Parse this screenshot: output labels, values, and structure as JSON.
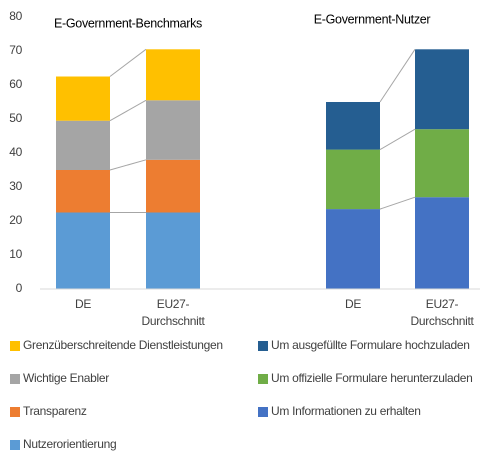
{
  "chart_data": [
    {
      "type": "bar",
      "stacked": true,
      "title": "E-Government-Benchmarks",
      "categories": [
        "DE",
        "EU27-\nDurchschnitt"
      ],
      "ylim": [
        0,
        80
      ],
      "yticks": [
        0,
        10,
        20,
        30,
        40,
        50,
        60,
        70,
        80
      ],
      "grid": false,
      "series": [
        {
          "name": "Nutzerorientierung",
          "color": "#5b9bd5",
          "values": [
            22.5,
            22.5
          ]
        },
        {
          "name": "Transparenz",
          "color": "#ed7d31",
          "values": [
            12.5,
            15.5
          ]
        },
        {
          "name": "Wichtige Enabler",
          "color": "#a5a5a5",
          "values": [
            14.5,
            17.5
          ]
        },
        {
          "name": "Grenzüberschreitende Dienstleistungen",
          "color": "#ffc000",
          "values": [
            13,
            15
          ]
        }
      ]
    },
    {
      "type": "bar",
      "stacked": true,
      "title": "E-Government-Nutzer",
      "categories": [
        "DE",
        "EU27-\nDurchschnitt"
      ],
      "ylim": [
        0,
        80
      ],
      "series": [
        {
          "name": "Um Informationen zu erhalten",
          "color": "#4472c4",
          "values": [
            23.5,
            27
          ]
        },
        {
          "name": "Um offizielle Formulare herunterzuladen",
          "color": "#70ad47",
          "values": [
            17.5,
            20
          ]
        },
        {
          "name": "Um ausgefüllte Formulare hochzuladen",
          "color": "#255e91",
          "values": [
            14,
            23.5
          ]
        }
      ]
    }
  ]
}
